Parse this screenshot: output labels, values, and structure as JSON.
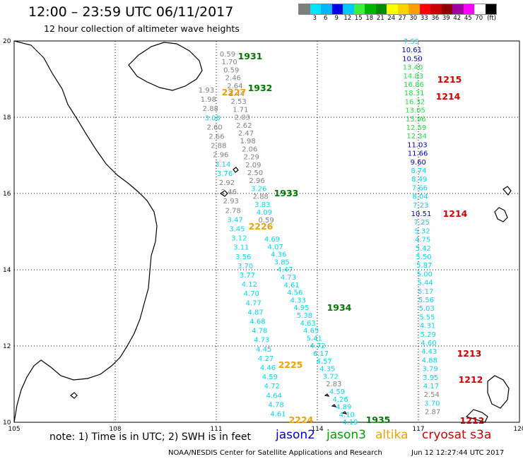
{
  "header": {
    "title": "12:00 – 23:59 UTC 06/11/2017",
    "subtitle": "12 hour collection of altimeter wave heights"
  },
  "colorbar": {
    "colors": [
      "#7f7f7f",
      "#00e5ff",
      "#00b4ff",
      "#0000e8",
      "#00c8ff",
      "#3cf03c",
      "#00b400",
      "#008c00",
      "#ffff00",
      "#ffd200",
      "#ffa000",
      "#ff0000",
      "#c80000",
      "#8c0000",
      "#a000a0",
      "#ff00ff",
      "#ffffff",
      "#000000"
    ],
    "labels": [
      "",
      "3",
      "6",
      "9",
      "12",
      "15",
      "18",
      "21",
      "24",
      "27",
      "30",
      "33",
      "36",
      "39",
      "42",
      "45",
      "70",
      "(ft)"
    ]
  },
  "map": {
    "lon_ticks": [
      "105",
      "108",
      "111",
      "114",
      "117",
      "120"
    ],
    "lat_ticks": [
      "20",
      "18",
      "16",
      "14",
      "12",
      "10"
    ],
    "colors": {
      "gray": "#808080",
      "cyan": "#00d8f0",
      "blue": "#0000c0",
      "green": "#20e040",
      "darkgreen": "#007800",
      "orange": "#f0a000",
      "red": "#d00000"
    },
    "tracks": [
      {
        "color": "gray",
        "x": 327,
        "values": [
          "0.59",
          "1.70",
          "0.59",
          "2.46",
          "2.64",
          "2.44",
          "2.53",
          "1.71",
          "2.03",
          "2.62",
          "2.47",
          "1.98",
          "2.06",
          "2.29",
          "2.09",
          "2.50",
          "2.96",
          "3.26",
          "2.88",
          "3.83",
          "4.09",
          "0.59"
        ]
      },
      {
        "color": "cyan",
        "x": 373,
        "values": [
          "4.69",
          "4.07",
          "4.36",
          "3.85",
          "4.47",
          "4.73",
          "4.61",
          "4.56",
          "4.33",
          "4.95",
          "5.38",
          "4.63",
          "4.65",
          "5.41",
          "4.72",
          "6.17",
          "4.57",
          "4.35",
          "3.72",
          "2.83",
          "4.59",
          "4.26",
          "4.89",
          "4.10",
          "4.19"
        ]
      },
      {
        "color": "mixed",
        "x": 582,
        "values": [
          "7.55",
          "10.61",
          "10.50",
          "13.40",
          "14.83",
          "16.86",
          "18.31",
          "16.32",
          "13.05",
          "15.96",
          "12.59",
          "12.34",
          "11.03",
          "11.66",
          "9.60",
          "8.74",
          "8.49",
          "7.66",
          "8.04",
          "7.23",
          "10.51",
          "7.25",
          "5.32",
          "4.75",
          "5.42",
          "5.50",
          "5.87",
          "5.00",
          "5.44",
          "5.17",
          "5.56",
          "5.03",
          "5.55",
          "4.31",
          "5.29",
          "4.60",
          "4.43",
          "4.88",
          "3.79",
          "3.95",
          "4.17",
          "2.54",
          "3.70",
          "2.87"
        ]
      },
      {
        "color": "gray",
        "x": 290,
        "values": [
          "1.93",
          "1.98",
          "2.88",
          "3.00",
          "2.60",
          "2.66",
          "2.88",
          "2.96",
          "3.14",
          "3.76",
          "2.92",
          "2.46",
          "2.93",
          "2.78",
          "3.47",
          "3.45",
          "3.12",
          "3.11",
          "3.56",
          "3.70",
          "3.77",
          "4.12",
          "4.70",
          "4.77",
          "4.87",
          "4.68",
          "4.78",
          "4.73",
          "4.45",
          "4.27",
          "4.46",
          "4.59",
          "4.72",
          "4.64",
          "4.78",
          "4.61"
        ]
      }
    ],
    "pass_labels": [
      {
        "text": "1931",
        "color": "darkgreen"
      },
      {
        "text": "1932",
        "color": "darkgreen"
      },
      {
        "text": "2227",
        "color": "orange"
      },
      {
        "text": "1215",
        "color": "red"
      },
      {
        "text": "1214",
        "color": "red"
      },
      {
        "text": "1933",
        "color": "darkgreen"
      },
      {
        "text": "1214",
        "color": "red"
      },
      {
        "text": "2226",
        "color": "orange"
      },
      {
        "text": "1934",
        "color": "darkgreen"
      },
      {
        "text": "1213",
        "color": "red"
      },
      {
        "text": "2225",
        "color": "orange"
      },
      {
        "text": "1212",
        "color": "red"
      },
      {
        "text": "2224",
        "color": "orange"
      },
      {
        "text": "1935",
        "color": "darkgreen"
      },
      {
        "text": "1212",
        "color": "red"
      }
    ]
  },
  "footer": {
    "note": "note:  1) Time is in UTC;  2) SWH is in feet",
    "satellites": [
      {
        "name": "jason2",
        "color": "#0000d0"
      },
      {
        "name": "jason3",
        "color": "#00a000"
      },
      {
        "name": "altika",
        "color": "#f0a000"
      },
      {
        "name": "cryosat s3a",
        "color": "#d00000"
      }
    ],
    "credit": "NOAA/NESDIS Center for Satellite Applications and Research",
    "timestamp": "Jun 12 12:27:44 UTC 2017"
  }
}
